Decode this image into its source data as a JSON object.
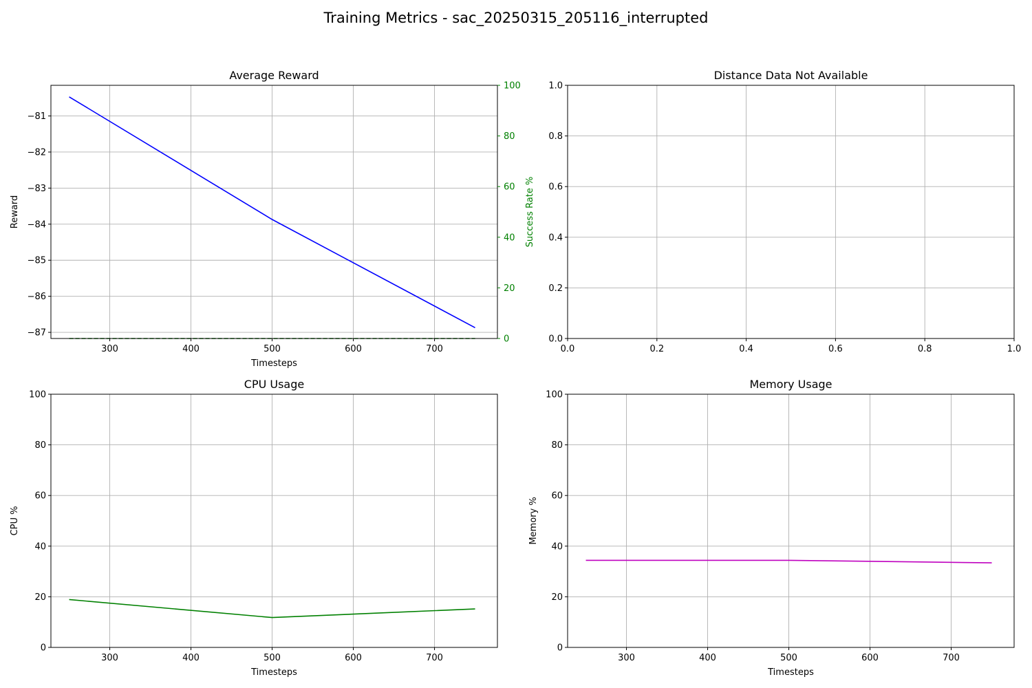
{
  "figure": {
    "title": "Training Metrics - sac_20250315_205116_interrupted"
  },
  "chart_data": [
    {
      "id": "reward",
      "type": "line",
      "title": "Average Reward",
      "xlabel": "Timesteps",
      "ylabel": "Reward",
      "y2label": "Success Rate %",
      "grid": true,
      "xlim": [
        227.5,
        777.5
      ],
      "ylim": [
        -87.17,
        -80.15
      ],
      "y2lim": [
        0,
        100
      ],
      "xticks": [
        300,
        400,
        500,
        600,
        700
      ],
      "yticks": [
        -87,
        -86,
        -85,
        -84,
        -83,
        -82,
        -81
      ],
      "y2ticks": [
        0,
        20,
        40,
        60,
        80,
        100
      ],
      "x": [
        250,
        500,
        750
      ],
      "series": [
        {
          "axis": "left",
          "color": "#0000ff",
          "dashed": false,
          "values": [
            -80.47,
            -83.87,
            -86.87
          ]
        },
        {
          "axis": "right",
          "color": "#008000",
          "dashed": true,
          "values": [
            0,
            0,
            0
          ]
        }
      ],
      "right_axis_color": "#008000"
    },
    {
      "id": "distance",
      "type": "line",
      "title": "Distance Data Not Available",
      "xlabel": "",
      "ylabel": "",
      "grid": true,
      "xlim": [
        0,
        1
      ],
      "ylim": [
        0,
        1
      ],
      "xticks": [
        0.0,
        0.2,
        0.4,
        0.6,
        0.8,
        1.0
      ],
      "yticks": [
        0.0,
        0.2,
        0.4,
        0.6,
        0.8,
        1.0
      ],
      "tick_format": "1dp",
      "x": [],
      "series": []
    },
    {
      "id": "cpu",
      "type": "line",
      "title": "CPU Usage",
      "xlabel": "Timesteps",
      "ylabel": "CPU %",
      "grid": true,
      "xlim": [
        227.5,
        777.5
      ],
      "ylim": [
        0,
        100
      ],
      "xticks": [
        300,
        400,
        500,
        600,
        700
      ],
      "yticks": [
        0,
        20,
        40,
        60,
        80,
        100
      ],
      "x": [
        250,
        500,
        750
      ],
      "series": [
        {
          "axis": "left",
          "color": "#008000",
          "dashed": false,
          "values": [
            18.9,
            11.8,
            15.2
          ]
        }
      ]
    },
    {
      "id": "memory",
      "type": "line",
      "title": "Memory Usage",
      "xlabel": "Timesteps",
      "ylabel": "Memory %",
      "grid": true,
      "xlim": [
        227.5,
        777.5
      ],
      "ylim": [
        0,
        100
      ],
      "xticks": [
        300,
        400,
        500,
        600,
        700
      ],
      "yticks": [
        0,
        20,
        40,
        60,
        80,
        100
      ],
      "x": [
        250,
        500,
        750
      ],
      "series": [
        {
          "axis": "left",
          "color": "#bf00bf",
          "dashed": false,
          "values": [
            34.4,
            34.4,
            33.4
          ]
        }
      ]
    }
  ]
}
